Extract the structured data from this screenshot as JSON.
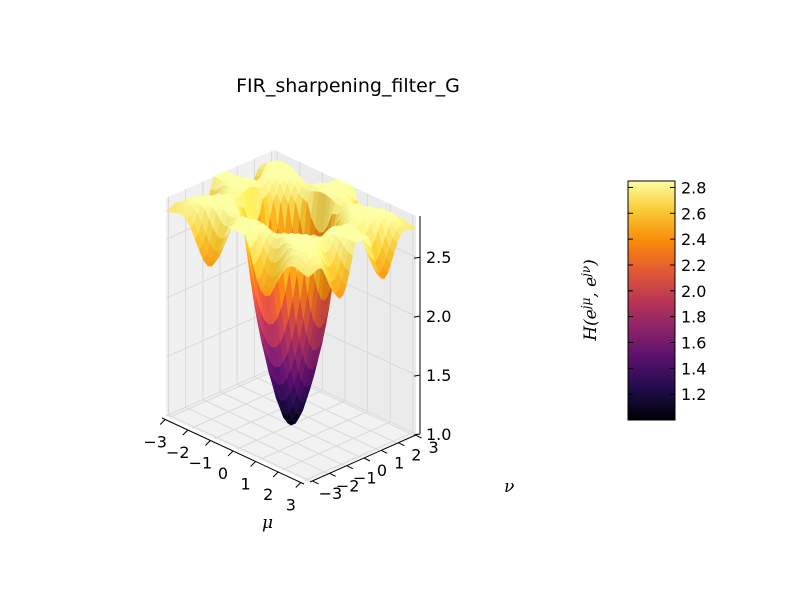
{
  "chart_data": {
    "type": "surface",
    "title": "FIR_sharpening_filter_G",
    "xlabel": "μ",
    "ylabel": "ν",
    "zlabel": "H(e^{jμ}, e^{jν})",
    "xlim": [
      -3.14,
      3.14
    ],
    "ylim": [
      -3.14,
      3.14
    ],
    "zlim": [
      1.0,
      2.85
    ],
    "x_ticks": [
      "−3",
      "−2",
      "−1",
      "0",
      "1",
      "2",
      "3"
    ],
    "y_ticks": [
      "−3",
      "−2",
      "−1",
      "0",
      "1",
      "2",
      "3"
    ],
    "z_ticks": [
      "1.0",
      "1.5",
      "2.0",
      "2.5"
    ],
    "colormap": "inferno",
    "colorbar": {
      "range": [
        1.0,
        2.85
      ],
      "ticks": [
        "1.2",
        "1.4",
        "1.6",
        "1.8",
        "2.0",
        "2.2",
        "2.4",
        "2.6",
        "2.8"
      ]
    },
    "surface_min": {
      "mu": 0,
      "nu": 0,
      "value": 1.0
    },
    "surface_max": 2.85,
    "grid": true
  }
}
